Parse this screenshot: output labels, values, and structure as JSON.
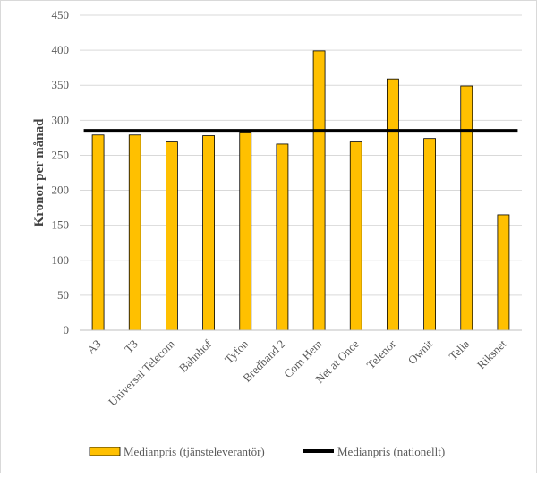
{
  "chart_data": {
    "type": "bar",
    "title": "",
    "xlabel": "",
    "ylabel": "Kronor per månad",
    "ylim": [
      0,
      450
    ],
    "yticks": [
      0,
      50,
      100,
      150,
      200,
      250,
      300,
      350,
      400,
      450
    ],
    "grid": true,
    "legend_position": "bottom",
    "categories": [
      "A3",
      "T3",
      "Universal Telecom",
      "Bahnhof",
      "Tyfon",
      "Bredband 2",
      "Com Hem",
      "Net at Once",
      "Telenor",
      "Ownit",
      "Telia",
      "Riksnet"
    ],
    "series": [
      {
        "name": "Medianpris (tjänsteleverantör)",
        "type": "bar",
        "color": "#FFC000",
        "values": [
          279,
          279,
          269,
          278,
          282,
          266,
          399,
          269,
          359,
          274,
          349,
          165
        ]
      },
      {
        "name": "Medianpris (nationellt)",
        "type": "line",
        "color": "#000000",
        "value": 285
      }
    ]
  }
}
